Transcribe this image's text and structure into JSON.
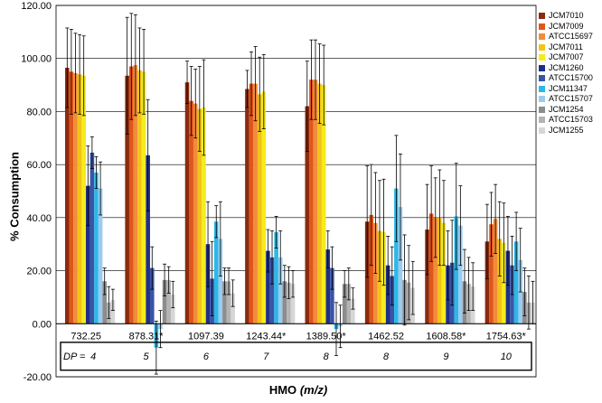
{
  "chart_data": {
    "type": "bar",
    "title": "",
    "xlabel": "HMO",
    "xlabel_unit": "(m/z)",
    "ylabel": "% Consumption",
    "ylim": [
      -20,
      120
    ],
    "yticks": [
      "-20.00",
      "0.00",
      "20.00",
      "40.00",
      "60.00",
      "80.00",
      "100.00",
      "120.00"
    ],
    "grid": true,
    "legend_position": "right",
    "categories": [
      "732.25",
      "878.31*",
      "1097.39",
      "1243.44*",
      "1389.50*",
      "1462.52",
      "1608.58*",
      "1754.63*"
    ],
    "dp_label": "DP =",
    "dp_values": [
      "4",
      "5",
      "6",
      "7",
      "8",
      "8",
      "9",
      "10"
    ],
    "series": [
      {
        "name": "JCM7010",
        "color": "#8B2A0E",
        "values": [
          96.5,
          93.5,
          91,
          88.5,
          82,
          38.5,
          35.5,
          31
        ],
        "errors": [
          15,
          22,
          8,
          7,
          17,
          21,
          17,
          14
        ]
      },
      {
        "name": "JCM7009",
        "color": "#E0561A",
        "values": [
          95,
          97,
          84,
          90.5,
          92,
          41,
          41.5,
          37.5
        ],
        "errors": [
          16,
          20,
          13,
          12,
          15,
          19,
          18,
          12
        ]
      },
      {
        "name": "ATCC15697",
        "color": "#F08C3C",
        "values": [
          94.5,
          97.5,
          83,
          90.5,
          92,
          38,
          40,
          39.5
        ],
        "errors": [
          15,
          19,
          13,
          14,
          15,
          19,
          15,
          13
        ]
      },
      {
        "name": "JCM7011",
        "color": "#F2C318",
        "values": [
          94,
          95.5,
          81,
          86.5,
          90.5,
          35,
          40,
          32
        ],
        "errors": [
          15,
          16,
          16,
          14,
          15,
          19,
          18,
          14
        ]
      },
      {
        "name": "JCM7007",
        "color": "#F5EC1A",
        "values": [
          93.5,
          95,
          81.5,
          87.5,
          90,
          34.5,
          38,
          30.5
        ],
        "errors": [
          15,
          16,
          18,
          14,
          15,
          20,
          16,
          15
        ]
      },
      {
        "name": "JCM1260",
        "color": "#1F2F88",
        "values": [
          52,
          63.5,
          30,
          27.5,
          28,
          22,
          22,
          27.5
        ],
        "errors": [
          15,
          21,
          16,
          8,
          7,
          11,
          13,
          13
        ]
      },
      {
        "name": "ATCC15700",
        "color": "#3A55A6",
        "values": [
          64.5,
          21,
          17,
          25,
          21,
          18,
          23,
          22
        ],
        "errors": [
          6,
          8,
          14,
          10,
          8,
          11,
          16,
          11
        ]
      },
      {
        "name": "JCM11347",
        "color": "#2BB8E8",
        "values": [
          57,
          -9,
          38.5,
          34.5,
          -2,
          51,
          40.5,
          31
        ],
        "errors": [
          6,
          10,
          6,
          6,
          10,
          20,
          20,
          11
        ]
      },
      {
        "name": "ATCC15707",
        "color": "#9CCBEF",
        "values": [
          51,
          -2,
          32,
          25,
          -1,
          44,
          37,
          24
        ],
        "errors": [
          10,
          7,
          14,
          10,
          8,
          20,
          15,
          12
        ]
      },
      {
        "name": "JCM1254",
        "color": "#8C8C8C",
        "values": [
          16,
          16.5,
          16,
          16,
          15,
          16.5,
          16,
          12
        ],
        "errors": [
          5,
          6,
          5,
          6,
          5,
          17,
          12,
          9
        ]
      },
      {
        "name": "ATCC15703",
        "color": "#B4B4B4",
        "values": [
          8,
          16.5,
          16,
          15.5,
          15,
          15.5,
          15,
          8
        ],
        "errors": [
          6,
          5,
          5,
          6,
          6,
          14,
          10,
          10
        ]
      },
      {
        "name": "JCM1255",
        "color": "#D6D6D6",
        "values": [
          9,
          11,
          11.5,
          15,
          9.5,
          13.5,
          14,
          8
        ],
        "errors": [
          4,
          5,
          5,
          5,
          4,
          10,
          9,
          8
        ]
      }
    ]
  }
}
